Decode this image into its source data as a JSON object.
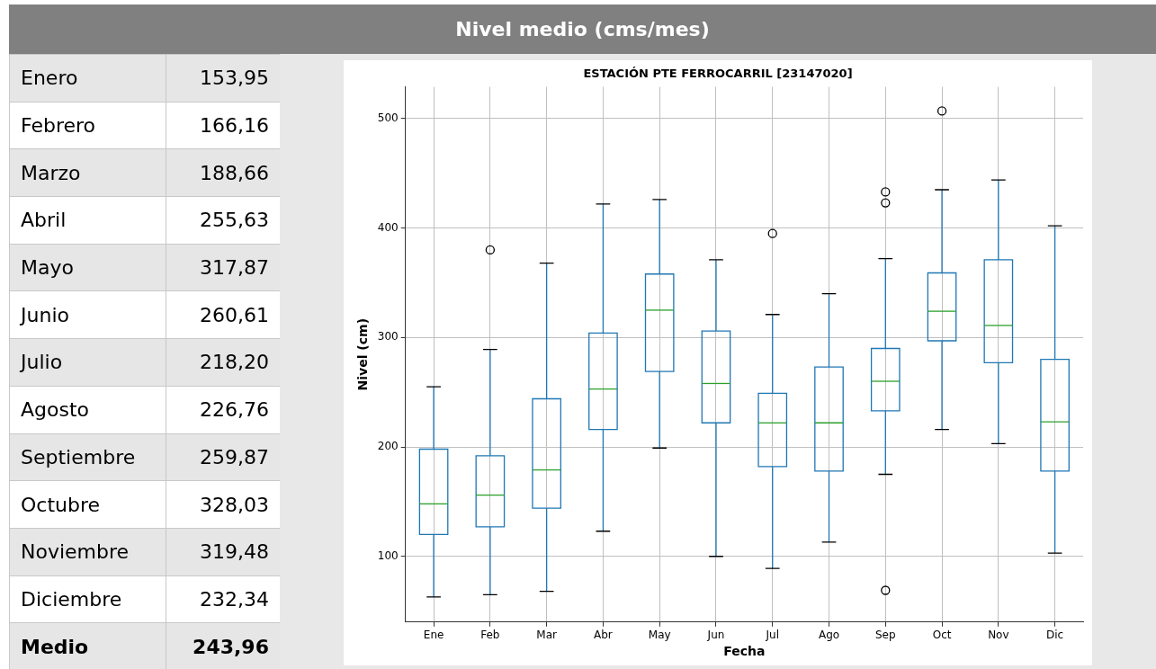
{
  "chart_data": [
    {
      "type": "other",
      "title": "Nivel medio (cms/mes)",
      "categories": [
        "Enero",
        "Febrero",
        "Marzo",
        "Abril",
        "Mayo",
        "Junio",
        "Julio",
        "Agosto",
        "Septiembre",
        "Octubre",
        "Noviembre",
        "Diciembre",
        "Medio"
      ],
      "value_labels": [
        "153,95",
        "166,16",
        "188,66",
        "255,63",
        "317,87",
        "260,61",
        "218,20",
        "226,76",
        "259,87",
        "328,03",
        "319,48",
        "232,34",
        "243,96"
      ]
    },
    {
      "type": "box",
      "title": "ESTACIÓN PTE FERROCARRIL [23147020]",
      "xlabel": "Fecha",
      "ylabel": "Nivel (cm)",
      "categories": [
        "Ene",
        "Feb",
        "Mar",
        "Abr",
        "May",
        "Jun",
        "Jul",
        "Ago",
        "Sep",
        "Oct",
        "Nov",
        "Dic"
      ],
      "ylim": [
        40,
        529
      ],
      "yticks": [
        100,
        200,
        300,
        400,
        500
      ],
      "grid": true,
      "series": [
        {
          "color": "#1f77b4",
          "boxes": [
            {
              "low": 63,
              "q1": 120,
              "median": 148,
              "q3": 198,
              "high": 255
            },
            {
              "low": 65,
              "q1": 127,
              "median": 156,
              "q3": 192,
              "high": 289,
              "outliers": [
                380
              ]
            },
            {
              "low": 68,
              "q1": 144,
              "median": 179,
              "q3": 244,
              "high": 368
            },
            {
              "low": 123,
              "q1": 216,
              "median": 253,
              "q3": 304,
              "high": 422
            },
            {
              "low": 199,
              "q1": 269,
              "median": 325,
              "q3": 358,
              "high": 426
            },
            {
              "low": 100,
              "q1": 222,
              "median": 258,
              "q3": 306,
              "high": 371
            },
            {
              "low": 89,
              "q1": 182,
              "median": 222,
              "q3": 249,
              "high": 321,
              "outliers": [
                395
              ]
            },
            {
              "low": 113,
              "q1": 178,
              "median": 222,
              "q3": 273,
              "high": 340
            },
            {
              "low": 175,
              "q1": 233,
              "median": 260,
              "q3": 290,
              "high": 372,
              "outliers": [
                433,
                423,
                69
              ]
            },
            {
              "low": 216,
              "q1": 297,
              "median": 324,
              "q3": 359,
              "high": 435,
              "outliers": [
                507
              ]
            },
            {
              "low": 203,
              "q1": 277,
              "median": 311,
              "q3": 371,
              "high": 444
            },
            {
              "low": 103,
              "q1": 178,
              "median": 223,
              "q3": 280,
              "high": 402
            }
          ]
        }
      ]
    }
  ]
}
